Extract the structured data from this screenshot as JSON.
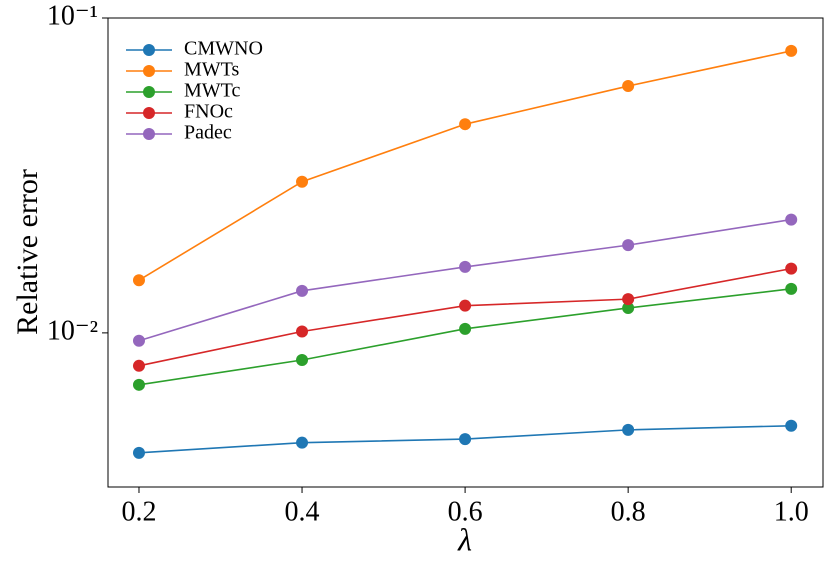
{
  "chart_data": {
    "type": "line",
    "x_label": "λ",
    "y_label": "Relative error",
    "x": [
      0.2,
      0.4,
      0.6,
      0.8,
      1.0
    ],
    "series": [
      {
        "name": "CMWNO",
        "color": "#1f77b4",
        "values": [
          0.00416,
          0.00448,
          0.0046,
          0.00492,
          0.00507
        ]
      },
      {
        "name": "MWTs",
        "color": "#ff7f0e",
        "values": [
          0.0147,
          0.0302,
          0.046,
          0.0608,
          0.0786
        ]
      },
      {
        "name": "MWTc",
        "color": "#2ca02c",
        "values": [
          0.00684,
          0.0082,
          0.0103,
          0.012,
          0.0138
        ]
      },
      {
        "name": "FNOc",
        "color": "#d62728",
        "values": [
          0.00786,
          0.0101,
          0.0122,
          0.0128,
          0.016
        ]
      },
      {
        "name": "Padec",
        "color": "#9467bd",
        "values": [
          0.00944,
          0.0136,
          0.0162,
          0.019,
          0.0229
        ]
      }
    ],
    "xlim": [
      0.162,
      1.039
    ],
    "xticks": [
      0.2,
      0.4,
      0.6,
      0.8,
      {
        "value": 1,
        "label": "1.0"
      }
    ],
    "ylim": [
      0.00324,
      0.1
    ],
    "yticks": [
      {
        "value": 0.01,
        "label": "10⁻²"
      },
      {
        "value": 0.1,
        "label": "10⁻¹"
      }
    ],
    "log_y": true,
    "legend": "upper left"
  }
}
